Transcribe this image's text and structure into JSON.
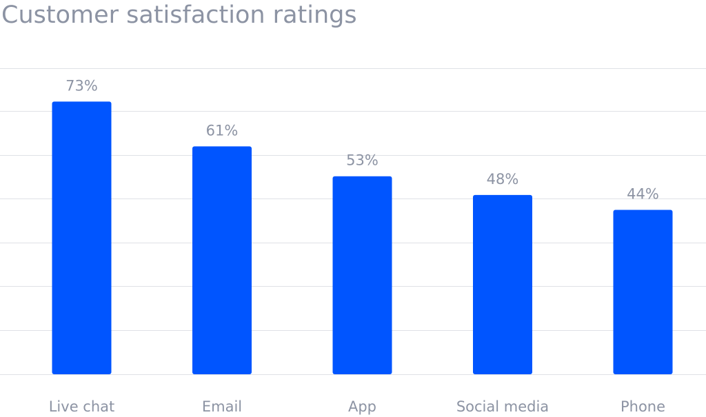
{
  "chart_data": {
    "type": "bar",
    "title": "Customer satisfaction ratings",
    "categories": [
      "Live chat",
      "Email",
      "App",
      "Social media",
      "Phone"
    ],
    "values": [
      73,
      61,
      53,
      48,
      44
    ],
    "data_labels": [
      "73%",
      "61%",
      "53%",
      "48%",
      "44%"
    ],
    "xlabel": "",
    "ylabel": "",
    "ylim": [
      0,
      70
    ],
    "grid": true,
    "legend": "none",
    "colors": {
      "bar": "#0055ff",
      "text": "#8c93a3",
      "grid": "#dfe1e6"
    }
  }
}
